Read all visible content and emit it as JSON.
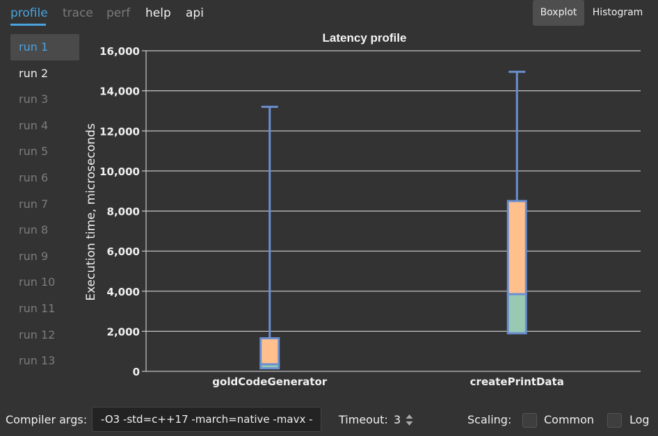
{
  "tabs": [
    {
      "label": "profile",
      "state": "active"
    },
    {
      "label": "trace",
      "state": "dim"
    },
    {
      "label": "perf",
      "state": "dim"
    },
    {
      "label": "help",
      "state": "normal"
    },
    {
      "label": "api",
      "state": "normal"
    }
  ],
  "view_buttons": {
    "boxplot": "Boxplot",
    "histogram": "Histogram",
    "active": "boxplot"
  },
  "runs": [
    {
      "label": "run 1",
      "state": "active"
    },
    {
      "label": "run 2",
      "state": "normal"
    },
    {
      "label": "run 3",
      "state": "dim"
    },
    {
      "label": "run 4",
      "state": "dim"
    },
    {
      "label": "run 5",
      "state": "dim"
    },
    {
      "label": "run 6",
      "state": "dim"
    },
    {
      "label": "run 7",
      "state": "dim"
    },
    {
      "label": "run 8",
      "state": "dim"
    },
    {
      "label": "run 9",
      "state": "dim"
    },
    {
      "label": "run 10",
      "state": "dim"
    },
    {
      "label": "run 11",
      "state": "dim"
    },
    {
      "label": "run 12",
      "state": "dim"
    },
    {
      "label": "run 13",
      "state": "dim"
    }
  ],
  "bottom": {
    "compiler_label": "Compiler args:",
    "compiler_value": "-O3 -std=c++17 -march=native -mavx -",
    "timeout_label": "Timeout:",
    "timeout_value": "3",
    "scaling_label": "Scaling:",
    "common_label": "Common",
    "common_checked": false,
    "log_label": "Log",
    "log_checked": false
  },
  "colors": {
    "accent": "#4aa3df",
    "box_stroke": "#6b8fd0",
    "upper_box_fill": "#ffc08e",
    "lower_box_fill": "#97c9b3",
    "background": "#333333"
  },
  "chart_data": {
    "type": "boxplot",
    "title": "Latency profile",
    "xlabel": "",
    "ylabel": "Execution time, microseconds",
    "ylim": [
      0,
      16000
    ],
    "yticks": [
      0,
      2000,
      4000,
      6000,
      8000,
      10000,
      12000,
      14000,
      16000
    ],
    "ytick_labels": [
      "0",
      "2,000",
      "4,000",
      "6,000",
      "8,000",
      "10,000",
      "12,000",
      "14,000",
      "16,000"
    ],
    "grid": true,
    "categories": [
      "goldCodeGenerator",
      "createPrintData"
    ],
    "boxes": [
      {
        "category": "goldCodeGenerator",
        "min": 150,
        "q1": 150,
        "median": 350,
        "q3": 1650,
        "max": 13200
      },
      {
        "category": "createPrintData",
        "min": 1900,
        "q1": 1900,
        "median": 3850,
        "q3": 8500,
        "max": 14950
      }
    ]
  }
}
